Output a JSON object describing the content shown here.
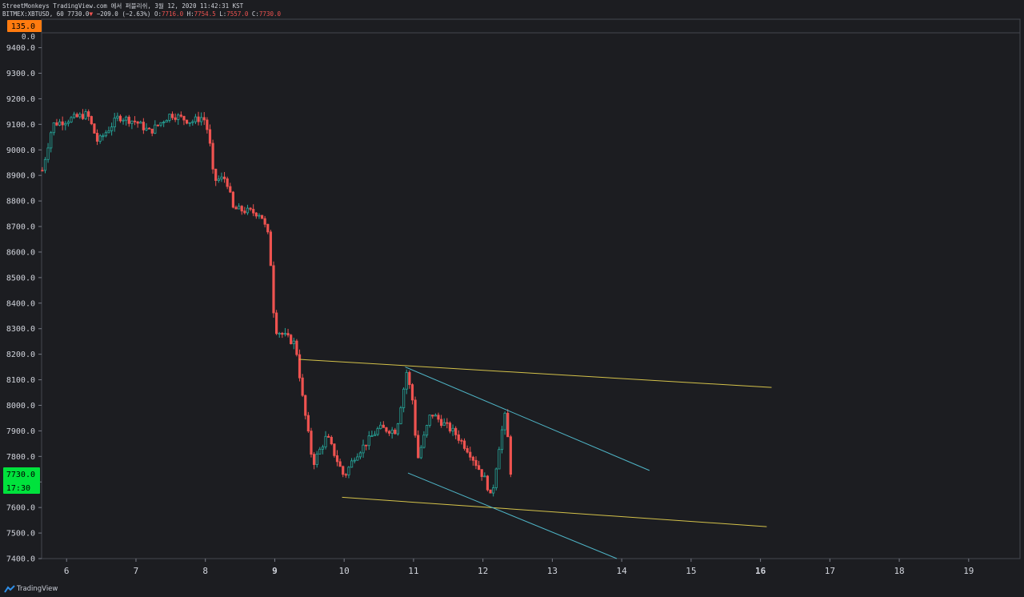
{
  "header": {
    "line1": "StreetMonkeys TradingView.com 에서 퍼블리쉬, 3월 12, 2020 11:42:31 KST",
    "symbol": "BITMEX:XBTUSD, 60",
    "last": "7730.0",
    "change": "−209.0 (−2.63%)",
    "o_label": "O:",
    "o_val": "7716.0",
    "h_label": "H:",
    "h_val": "7754.5",
    "l_label": "L:",
    "l_val": "7557.0",
    "c_label": "C:",
    "c_val": "7730.0"
  },
  "badges": {
    "top_value": "135.0",
    "top_zero": "0.0",
    "price": "7730.0",
    "countdown": "17:30"
  },
  "colors": {
    "up": "#26a69a",
    "up_body": "#1c1d21",
    "down": "#ef5350",
    "trendline": "#d4c24a",
    "channel": "#4fb6c8",
    "price_badge": "#00e23c",
    "top_badge": "#ff7b0f"
  },
  "footer": {
    "brand": "TradingView"
  },
  "chart_data": {
    "type": "candlestick",
    "y_axis_ticks": [
      "7400.0",
      "7500.0",
      "7600.0",
      "7700.0",
      "7800.0",
      "7900.0",
      "8000.0",
      "8100.0",
      "8200.0",
      "8300.0",
      "8400.0",
      "8500.0",
      "8600.0",
      "8700.0",
      "8800.0",
      "8900.0",
      "9000.0",
      "9100.0",
      "9200.0",
      "9300.0",
      "9400.0"
    ],
    "ylim": [
      7400,
      9430
    ],
    "x_axis_ticks": [
      "6",
      "7",
      "8",
      "9",
      "10",
      "11",
      "12",
      "13",
      "14",
      "15",
      "16",
      "17",
      "18",
      "19"
    ],
    "bold_ticks": [
      "9",
      "16"
    ],
    "xlim": [
      5.64,
      19.74
    ],
    "key_points": [
      {
        "day": 5.65,
        "price": 8920
      },
      {
        "day": 5.8,
        "price": 9100
      },
      {
        "day": 6.3,
        "price": 9140
      },
      {
        "day": 6.45,
        "price": 9030
      },
      {
        "day": 6.75,
        "price": 9130
      },
      {
        "day": 7.0,
        "price": 9110
      },
      {
        "day": 7.2,
        "price": 9070
      },
      {
        "day": 7.5,
        "price": 9140
      },
      {
        "day": 7.8,
        "price": 9110
      },
      {
        "day": 7.97,
        "price": 9130
      },
      {
        "day": 8.05,
        "price": 9060
      },
      {
        "day": 8.12,
        "price": 8880
      },
      {
        "day": 8.3,
        "price": 8890
      },
      {
        "day": 8.4,
        "price": 8770
      },
      {
        "day": 8.8,
        "price": 8750
      },
      {
        "day": 8.92,
        "price": 8650
      },
      {
        "day": 9.0,
        "price": 8300
      },
      {
        "day": 9.3,
        "price": 8240
      },
      {
        "day": 9.4,
        "price": 8030
      },
      {
        "day": 9.55,
        "price": 7770
      },
      {
        "day": 9.75,
        "price": 7880
      },
      {
        "day": 10.0,
        "price": 7720
      },
      {
        "day": 10.15,
        "price": 7800
      },
      {
        "day": 10.5,
        "price": 7910
      },
      {
        "day": 10.75,
        "price": 7900
      },
      {
        "day": 10.9,
        "price": 8130
      },
      {
        "day": 11.0,
        "price": 8000
      },
      {
        "day": 11.05,
        "price": 7780
      },
      {
        "day": 11.25,
        "price": 7970
      },
      {
        "day": 11.6,
        "price": 7890
      },
      {
        "day": 11.8,
        "price": 7820
      },
      {
        "day": 12.05,
        "price": 7700
      },
      {
        "day": 12.12,
        "price": 7630
      },
      {
        "day": 12.25,
        "price": 7870
      },
      {
        "day": 12.32,
        "price": 7960
      },
      {
        "day": 12.42,
        "price": 7730
      }
    ],
    "lines": [
      {
        "name": "upper-trendline",
        "type": "trendline",
        "x": [
          9.35,
          16.16
        ],
        "y": [
          8180,
          8070
        ]
      },
      {
        "name": "lower-trendline",
        "type": "trendline",
        "x": [
          9.97,
          16.09
        ],
        "y": [
          7640,
          7525
        ]
      },
      {
        "name": "channel-upper",
        "type": "channel",
        "x": [
          10.88,
          14.4
        ],
        "y": [
          8150,
          7745
        ]
      },
      {
        "name": "channel-lower",
        "type": "channel",
        "x": [
          10.92,
          13.93
        ],
        "y": [
          7735,
          7400
        ]
      }
    ],
    "last_price": 7730
  }
}
